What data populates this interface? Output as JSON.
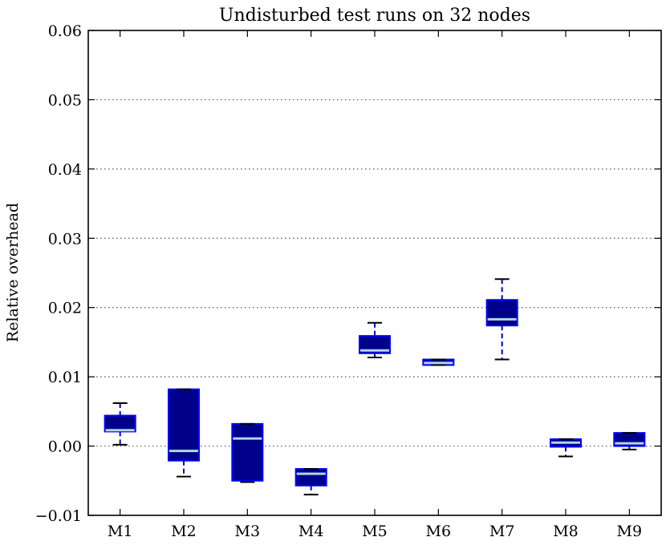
{
  "chart_data": {
    "type": "boxplot",
    "title": "Undisturbed test runs on 32 nodes",
    "xlabel": "",
    "ylabel": "Relative overhead",
    "ylim": [
      -0.01,
      0.06
    ],
    "yticks": [
      "−0.01",
      "0.00",
      "0.01",
      "0.02",
      "0.03",
      "0.04",
      "0.05",
      "0.06"
    ],
    "grid": "horizontal-dotted",
    "categories": [
      "M1",
      "M2",
      "M3",
      "M4",
      "M5",
      "M6",
      "M7",
      "M8",
      "M9"
    ],
    "boxes": [
      {
        "label": "M1",
        "whisker_low": 0.0002,
        "q1": 0.0021,
        "median": 0.0023,
        "q3": 0.0044,
        "whisker_high": 0.0062
      },
      {
        "label": "M2",
        "whisker_low": -0.0044,
        "q1": -0.0021,
        "median": -0.0007,
        "q3": 0.0082,
        "whisker_high": 0.0082
      },
      {
        "label": "M3",
        "whisker_low": -0.0052,
        "q1": -0.005,
        "median": 0.0011,
        "q3": 0.0032,
        "whisker_high": 0.0032
      },
      {
        "label": "M4",
        "whisker_low": -0.007,
        "q1": -0.0057,
        "median": -0.004,
        "q3": -0.0033,
        "whisker_high": -0.0033
      },
      {
        "label": "M5",
        "whisker_low": 0.0128,
        "q1": 0.0134,
        "median": 0.0138,
        "q3": 0.0159,
        "whisker_high": 0.0178
      },
      {
        "label": "M6",
        "whisker_low": 0.0117,
        "q1": 0.0117,
        "median": 0.012,
        "q3": 0.0125,
        "whisker_high": 0.0125
      },
      {
        "label": "M7",
        "whisker_low": 0.0125,
        "q1": 0.0174,
        "median": 0.0183,
        "q3": 0.0211,
        "whisker_high": 0.0241
      },
      {
        "label": "M8",
        "whisker_low": -0.0015,
        "q1": -0.0001,
        "median": 0.0005,
        "q3": 0.001,
        "whisker_high": 0.001
      },
      {
        "label": "M9",
        "whisker_low": -0.0005,
        "q1": 0.0,
        "median": 0.0004,
        "q3": 0.0019,
        "whisker_high": 0.0019
      }
    ],
    "colors": {
      "box_fill": "#00008b",
      "box_edge": "#0000ff",
      "median": "#add8e6",
      "whisker": "#0000cc",
      "cap": "#000000",
      "grid": "#555555",
      "axes": "#000000"
    }
  }
}
